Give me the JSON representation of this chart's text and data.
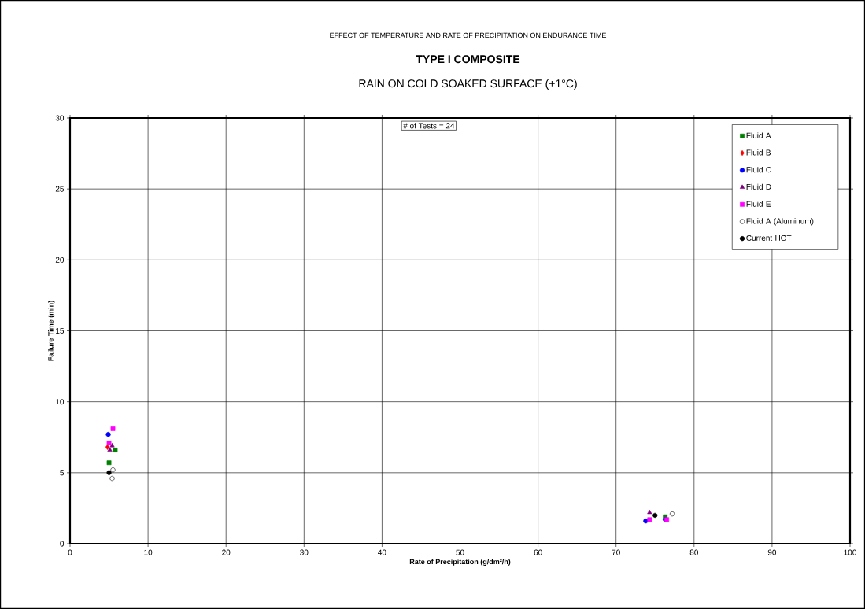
{
  "chart_data": {
    "type": "scatter",
    "title": "TYPE I COMPOSITE",
    "subtitle": "RAIN ON COLD SOAKED SURFACE (+1°C)",
    "annotations": [
      "EFFECT OF TEMPERATURE AND RATE OF PRECIPITATION ON ENDURANCE TIME",
      "# of Tests = 24"
    ],
    "xlabel": "Rate of Precipitation (g/dm²/h)",
    "ylabel": "Failure Time (min)",
    "xlim": [
      0,
      100
    ],
    "xticks": [
      0,
      10,
      20,
      30,
      40,
      50,
      60,
      70,
      80,
      90,
      100
    ],
    "ylim": [
      0,
      30
    ],
    "yticks": [
      0,
      5,
      10,
      15,
      20,
      25,
      30
    ],
    "grid": true,
    "legend": "top right",
    "series": [
      {
        "name": "Fluid A",
        "color": "#008000",
        "marker": "square",
        "x": [
          5.8,
          5.0,
          76.3
        ],
        "values": [
          6.6,
          5.7,
          1.9
        ]
      },
      {
        "name": "Fluid B",
        "color": "#ff0000",
        "marker": "diamond",
        "x": [
          4.8
        ],
        "values": [
          6.8
        ]
      },
      {
        "name": "Fluid C",
        "color": "#0000ff",
        "marker": "circle",
        "x": [
          4.9,
          73.8,
          76.3
        ],
        "values": [
          7.7,
          1.6,
          1.7
        ]
      },
      {
        "name": "Fluid D",
        "color": "#800080",
        "marker": "triangle",
        "x": [
          5.1,
          5.4,
          74.3
        ],
        "values": [
          6.6,
          6.9,
          2.2
        ]
      },
      {
        "name": "Fluid E",
        "color": "#ff00ff",
        "marker": "square",
        "x": [
          5.5,
          5.0,
          74.3,
          76.5
        ],
        "values": [
          8.1,
          7.1,
          1.7,
          1.7
        ]
      },
      {
        "name": "Fluid A (Aluminum)",
        "color": "#ffffff",
        "marker": "circle",
        "x": [
          5.5,
          5.4,
          77.2
        ],
        "values": [
          5.2,
          4.6,
          2.1
        ]
      },
      {
        "name": "Current HOT",
        "color": "#000000",
        "marker": "circle",
        "x": [
          5.0,
          75.0
        ],
        "values": [
          5.0,
          2.0
        ]
      }
    ]
  }
}
